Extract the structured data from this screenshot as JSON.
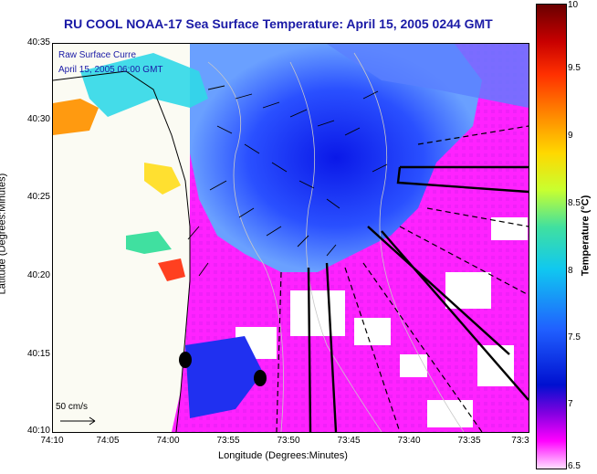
{
  "title": "RU COOL  NOAA-17  Sea Surface Temperature:  April 15, 2005 0244 GMT",
  "legend": {
    "line1": "Raw Surface Curre",
    "line2": "April 15, 2005 06:00 GMT"
  },
  "scale_label": "50 cm/s",
  "axes": {
    "y_title": "Latitude (Degrees:Minutes)",
    "x_title": "Longitude (Degrees:Minutes)",
    "y_ticks": [
      "40:35",
      "40:30",
      "40:25",
      "40:20",
      "40:15",
      "40:10"
    ],
    "x_ticks": [
      "74:10",
      "74:05",
      "74:00",
      "73:55",
      "73:50",
      "73:45",
      "73:40",
      "73:35",
      "73:3"
    ]
  },
  "colorbar": {
    "title": "Temperature (°C)",
    "ticks": [
      "10",
      "9.5",
      "9",
      "8.5",
      "8",
      "7.5",
      "7",
      "6.5"
    ]
  },
  "colors": {
    "land": "#fbfbf3",
    "cold": "#1a2aff",
    "warm": "#ff8a00",
    "magenta": "#ff22ff"
  }
}
